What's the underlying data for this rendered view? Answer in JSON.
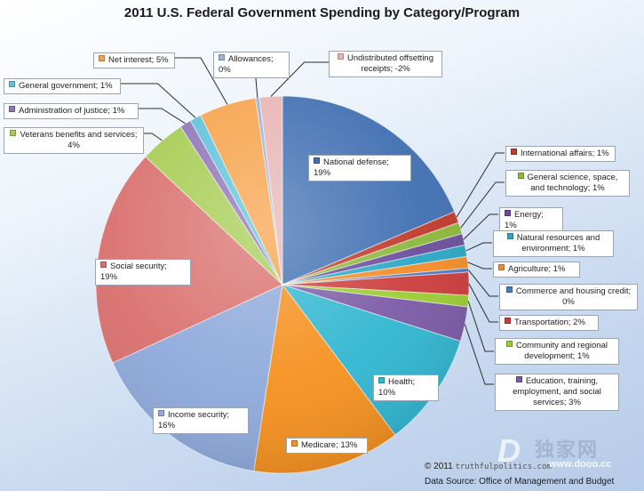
{
  "chart_data": {
    "type": "pie",
    "title": "2011 U.S. Federal Government Spending by Category/Program",
    "slices": [
      {
        "name": "National defense",
        "percent": 19,
        "label": "National defense; 19%",
        "color": "#3f6fb1"
      },
      {
        "name": "International affairs",
        "percent": 1,
        "label": "International affairs; 1%",
        "color": "#c0392b"
      },
      {
        "name": "General science, space, and technology",
        "percent": 1,
        "label": "General science, space, and technology; 1%",
        "color": "#8bb83a"
      },
      {
        "name": "Energy",
        "percent": 1,
        "label": "Energy; 1%",
        "color": "#6a4c9c"
      },
      {
        "name": "Natural resources and environment",
        "percent": 1,
        "label": "Natural resources and environment; 1%",
        "color": "#2aa6c5"
      },
      {
        "name": "Agriculture",
        "percent": 1,
        "label": "Agriculture; 1%",
        "color": "#f28c28"
      },
      {
        "name": "Commerce and housing credit",
        "percent": 0,
        "label": "Commerce and housing credit; 0%",
        "color": "#4a7bc0"
      },
      {
        "name": "Transportation",
        "percent": 2,
        "label": "Transportation; 2%",
        "color": "#cc3c3c"
      },
      {
        "name": "Community and regional development",
        "percent": 1,
        "label": "Community and regional development; 1%",
        "color": "#9acd32"
      },
      {
        "name": "Education, training, employment, and social services",
        "percent": 3,
        "label": "Education, training, employment, and social services; 3%",
        "color": "#7b5aa6"
      },
      {
        "name": "Health",
        "percent": 10,
        "label": "Health; 10%",
        "color": "#31b6d1"
      },
      {
        "name": "Medicare",
        "percent": 13,
        "label": "Medicare; 13%",
        "color": "#f5901e"
      },
      {
        "name": "Income security",
        "percent": 16,
        "label": "Income security; 16%",
        "color": "#8ea9db"
      },
      {
        "name": "Social security",
        "percent": 19,
        "label": "Social security; 19%",
        "color": "#d9706e"
      },
      {
        "name": "Veterans benefits and services",
        "percent": 4,
        "label": "Veterans benefits and services; 4%",
        "color": "#a6cc52"
      },
      {
        "name": "Administration of justice",
        "percent": 1,
        "label": "Administration of justice; 1%",
        "color": "#8e74b8"
      },
      {
        "name": "General government",
        "percent": 1,
        "label": "General government; 1%",
        "color": "#5ec2dc"
      },
      {
        "name": "Net interest",
        "percent": 5,
        "label": "Net interest; 5%",
        "color": "#f7a24a"
      },
      {
        "name": "Allowances",
        "percent": 0,
        "label": "Allowances; 0%",
        "color": "#9db3d6"
      },
      {
        "name": "Undistributed offsetting receipts",
        "percent": -2,
        "label": "Undistributed offsetting receipts; -2%",
        "color": "#e8b4b4"
      }
    ]
  },
  "footer": {
    "copyright": "© 2011",
    "site": "truthfulpolitics.com",
    "source": "Data Source:  Office of Management and Budget"
  },
  "watermark": {
    "letter": "D",
    "text": "独家网",
    "url": "www.dooo.cc"
  }
}
